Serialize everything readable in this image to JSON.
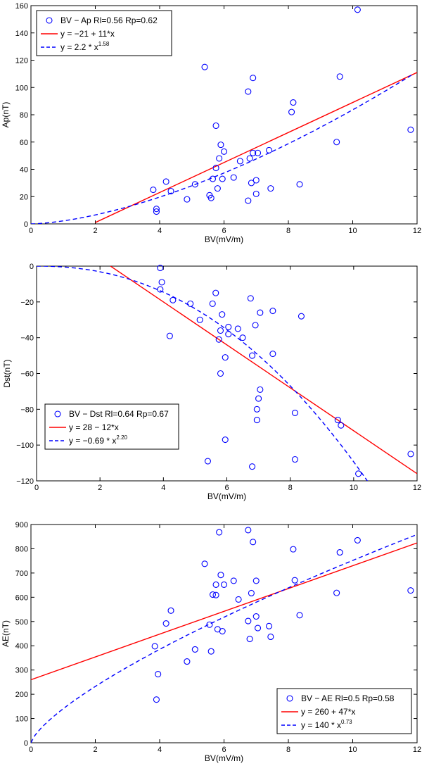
{
  "chart_data": [
    {
      "type": "scatter",
      "xlabel": "BV(mV/m)",
      "ylabel": "Ap(nT)",
      "xlim": [
        0,
        12
      ],
      "ylim": [
        0,
        160
      ],
      "xticks": [
        0,
        2,
        4,
        6,
        8,
        10,
        12
      ],
      "yticks": [
        0,
        20,
        40,
        60,
        80,
        100,
        120,
        140,
        160
      ],
      "legend_position": "top-left",
      "legend": {
        "scatter": "BV − Ap  Rl=0.56 Rp=0.62",
        "linear_prefix": "y = −21 + 11*x",
        "power_prefix": "y = 2.2 * x",
        "power_exponent": "1.58"
      },
      "linear_fit": {
        "intercept": -21,
        "slope": 11,
        "x_from": 2,
        "x_to": 12
      },
      "power_fit": {
        "coef": 2.2,
        "exponent": 1.58,
        "x_from": 0,
        "x_to": 11.85
      },
      "points": [
        {
          "x": 3.8,
          "y": 25
        },
        {
          "x": 3.9,
          "y": 9
        },
        {
          "x": 3.9,
          "y": 11
        },
        {
          "x": 4.2,
          "y": 31
        },
        {
          "x": 4.35,
          "y": 24
        },
        {
          "x": 4.85,
          "y": 18
        },
        {
          "x": 5.1,
          "y": 29
        },
        {
          "x": 5.4,
          "y": 115
        },
        {
          "x": 5.55,
          "y": 21
        },
        {
          "x": 5.6,
          "y": 19
        },
        {
          "x": 5.65,
          "y": 33
        },
        {
          "x": 5.75,
          "y": 41
        },
        {
          "x": 5.75,
          "y": 72
        },
        {
          "x": 5.8,
          "y": 26
        },
        {
          "x": 5.85,
          "y": 48
        },
        {
          "x": 5.9,
          "y": 58
        },
        {
          "x": 5.95,
          "y": 33
        },
        {
          "x": 6.0,
          "y": 53
        },
        {
          "x": 6.3,
          "y": 34
        },
        {
          "x": 6.5,
          "y": 46
        },
        {
          "x": 6.75,
          "y": 97
        },
        {
          "x": 6.75,
          "y": 17
        },
        {
          "x": 6.8,
          "y": 48
        },
        {
          "x": 6.85,
          "y": 30
        },
        {
          "x": 6.9,
          "y": 52
        },
        {
          "x": 6.9,
          "y": 107
        },
        {
          "x": 7.0,
          "y": 32
        },
        {
          "x": 7.0,
          "y": 22
        },
        {
          "x": 7.05,
          "y": 52
        },
        {
          "x": 7.4,
          "y": 54
        },
        {
          "x": 7.45,
          "y": 26
        },
        {
          "x": 8.1,
          "y": 82
        },
        {
          "x": 8.15,
          "y": 89
        },
        {
          "x": 8.35,
          "y": 29
        },
        {
          "x": 9.5,
          "y": 60
        },
        {
          "x": 9.6,
          "y": 108
        },
        {
          "x": 10.15,
          "y": 157
        },
        {
          "x": 11.8,
          "y": 69
        }
      ]
    },
    {
      "type": "scatter",
      "xlabel": "BV(mV/m)",
      "ylabel": "Dst(nT)",
      "xlim": [
        0,
        12
      ],
      "ylim": [
        -120,
        0
      ],
      "xticks": [
        0,
        2,
        4,
        6,
        8,
        10,
        12
      ],
      "yticks": [
        0,
        -20,
        -40,
        -60,
        -80,
        -100,
        -120
      ],
      "legend_position": "bottom-left",
      "legend": {
        "scatter": "BV − Dst  Rl=0.64 Rp=0.67",
        "linear_prefix": "y = 28 − 12*x",
        "power_prefix": "y = −0.69 * x",
        "power_exponent": "2.20"
      },
      "linear_fit": {
        "intercept": 28,
        "slope": -12,
        "x_from": 2.33,
        "x_to": 12
      },
      "power_fit": {
        "coef": -0.69,
        "exponent": 2.2,
        "x_from": 0,
        "x_to": 10.45
      },
      "points": [
        {
          "x": 3.9,
          "y": -1
        },
        {
          "x": 3.9,
          "y": -13
        },
        {
          "x": 3.95,
          "y": -9
        },
        {
          "x": 4.3,
          "y": -19
        },
        {
          "x": 4.2,
          "y": -39
        },
        {
          "x": 4.85,
          "y": -21
        },
        {
          "x": 5.15,
          "y": -30
        },
        {
          "x": 5.4,
          "y": -109
        },
        {
          "x": 5.55,
          "y": -21
        },
        {
          "x": 5.65,
          "y": -15
        },
        {
          "x": 5.75,
          "y": -41
        },
        {
          "x": 5.8,
          "y": -36
        },
        {
          "x": 5.8,
          "y": -60
        },
        {
          "x": 5.85,
          "y": -27
        },
        {
          "x": 5.95,
          "y": -51
        },
        {
          "x": 5.95,
          "y": -97
        },
        {
          "x": 6.05,
          "y": -34
        },
        {
          "x": 6.05,
          "y": -38
        },
        {
          "x": 6.35,
          "y": -35
        },
        {
          "x": 6.5,
          "y": -40
        },
        {
          "x": 6.75,
          "y": -18
        },
        {
          "x": 6.8,
          "y": -50
        },
        {
          "x": 6.8,
          "y": -112
        },
        {
          "x": 6.9,
          "y": -33
        },
        {
          "x": 6.95,
          "y": -80
        },
        {
          "x": 6.95,
          "y": -86
        },
        {
          "x": 7.0,
          "y": -74
        },
        {
          "x": 7.05,
          "y": -69
        },
        {
          "x": 7.05,
          "y": -26
        },
        {
          "x": 7.45,
          "y": -49
        },
        {
          "x": 7.45,
          "y": -25
        },
        {
          "x": 8.15,
          "y": -82
        },
        {
          "x": 8.15,
          "y": -108
        },
        {
          "x": 8.35,
          "y": -28
        },
        {
          "x": 9.5,
          "y": -86
        },
        {
          "x": 9.6,
          "y": -89
        },
        {
          "x": 10.15,
          "y": -116
        },
        {
          "x": 11.8,
          "y": -105
        }
      ]
    },
    {
      "type": "scatter",
      "xlabel": "BV(mV/m)",
      "ylabel": "AE(nT)",
      "xlim": [
        0,
        12
      ],
      "ylim": [
        0,
        900
      ],
      "xticks": [
        0,
        2,
        4,
        6,
        8,
        10,
        12
      ],
      "yticks": [
        0,
        100,
        200,
        300,
        400,
        500,
        600,
        700,
        800,
        900
      ],
      "legend_position": "bottom-right",
      "legend": {
        "scatter": "BV − AE  Rl=0.5 Rp=0.58",
        "linear_prefix": "y = 260 + 47*x",
        "power_prefix": "y = 140 * x",
        "power_exponent": "0.73"
      },
      "linear_fit": {
        "intercept": 260,
        "slope": 47,
        "x_from": 0,
        "x_to": 12
      },
      "power_fit": {
        "coef": 140,
        "exponent": 0.73,
        "x_from": 0,
        "x_to": 12
      },
      "points": [
        {
          "x": 3.85,
          "y": 398
        },
        {
          "x": 3.9,
          "y": 178
        },
        {
          "x": 3.95,
          "y": 283
        },
        {
          "x": 4.2,
          "y": 492
        },
        {
          "x": 4.35,
          "y": 545
        },
        {
          "x": 4.85,
          "y": 335
        },
        {
          "x": 5.1,
          "y": 385
        },
        {
          "x": 5.4,
          "y": 738
        },
        {
          "x": 5.55,
          "y": 487
        },
        {
          "x": 5.6,
          "y": 377
        },
        {
          "x": 5.65,
          "y": 611
        },
        {
          "x": 5.75,
          "y": 609
        },
        {
          "x": 5.75,
          "y": 652
        },
        {
          "x": 5.8,
          "y": 468
        },
        {
          "x": 5.85,
          "y": 868
        },
        {
          "x": 5.9,
          "y": 692
        },
        {
          "x": 5.95,
          "y": 460
        },
        {
          "x": 6.0,
          "y": 652
        },
        {
          "x": 6.3,
          "y": 668
        },
        {
          "x": 6.45,
          "y": 591
        },
        {
          "x": 6.75,
          "y": 877
        },
        {
          "x": 6.75,
          "y": 502
        },
        {
          "x": 6.8,
          "y": 428
        },
        {
          "x": 6.85,
          "y": 617
        },
        {
          "x": 6.9,
          "y": 828
        },
        {
          "x": 7.0,
          "y": 668
        },
        {
          "x": 7.0,
          "y": 521
        },
        {
          "x": 7.05,
          "y": 473
        },
        {
          "x": 7.4,
          "y": 481
        },
        {
          "x": 7.45,
          "y": 437
        },
        {
          "x": 8.15,
          "y": 798
        },
        {
          "x": 8.2,
          "y": 670
        },
        {
          "x": 8.35,
          "y": 526
        },
        {
          "x": 9.5,
          "y": 618
        },
        {
          "x": 9.6,
          "y": 785
        },
        {
          "x": 10.15,
          "y": 835
        },
        {
          "x": 11.8,
          "y": 628
        }
      ]
    }
  ],
  "colors": {
    "marker": "#0000ff",
    "linear_fit": "#ff0000",
    "power_fit": "#0000ff",
    "axes": "#000000"
  }
}
